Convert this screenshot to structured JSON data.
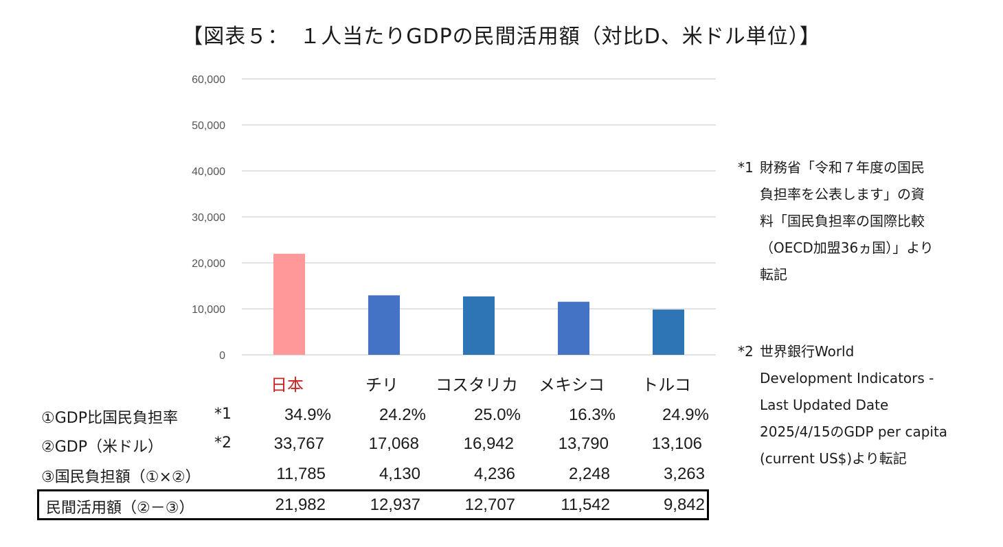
{
  "title": "【図表５：　１人当たりGDPの民間活用額（対比D、米ドル単位）】",
  "colors": {
    "highlight_bar": "#ff9999",
    "bar_a": "#4472c4",
    "bar_b": "#2e75b6",
    "highlight_label": "#cc2222",
    "grid": "#d9d9d9"
  },
  "chart_data": {
    "type": "bar",
    "categories": [
      "日本",
      "チリ",
      "コスタリカ",
      "メキシコ",
      "トルコ"
    ],
    "values": [
      21982,
      12937,
      12707,
      11542,
      9842
    ],
    "ylim": [
      0,
      60000
    ],
    "yticks": [
      "60,000",
      "50,000",
      "40,000",
      "30,000",
      "20,000",
      "10,000",
      "0"
    ],
    "ytick_values": [
      60000,
      50000,
      40000,
      30000,
      20000,
      10000,
      0
    ],
    "grid": true,
    "title": "",
    "xlabel": "",
    "ylabel": ""
  },
  "table": {
    "rows": [
      {
        "label": "①GDP比国民負担率",
        "note": "*1",
        "values": [
          "34.9%",
          "24.2%",
          "25.0%",
          "16.3%",
          "24.9%"
        ]
      },
      {
        "label": "②GDP（米ドル）",
        "note": "*2",
        "values": [
          "33,767",
          "17,068",
          "16,942",
          "13,790",
          "13,106"
        ]
      },
      {
        "label": "③国民負担額（①×②）",
        "note": "",
        "values": [
          "11,785",
          "4,130",
          "4,236",
          "2,248",
          "3,263"
        ]
      },
      {
        "label": " 民間活用額（②－③）",
        "note": "",
        "values": [
          "21,982",
          "12,937",
          "12,707",
          "11,542",
          "9,842"
        ]
      }
    ]
  },
  "footnotes": [
    {
      "mark": "*1",
      "lines": [
        "財務省「令和７年度の国民",
        "負担率を公表します」の資",
        "料「国民負担率の国際比較",
        "（OECD加盟36ヵ国）」より",
        "転記"
      ]
    },
    {
      "mark": "*2",
      "lines": [
        "世界銀行World",
        "Development Indicators -",
        "Last Updated Date",
        "2025/4/15のGDP per capita",
        "(current US$)より転記"
      ]
    }
  ]
}
